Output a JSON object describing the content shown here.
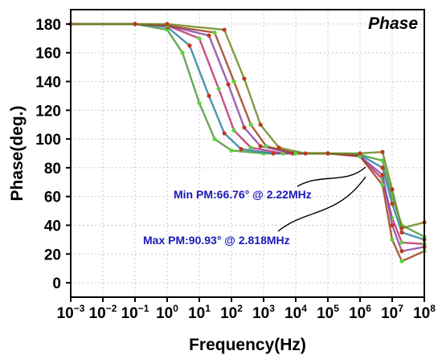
{
  "chart_data": {
    "type": "line",
    "title": "Phase",
    "xlabel": "Frequency(Hz)",
    "ylabel": "Phase(deg.)",
    "x_scale": "log",
    "xlim": [
      0.001,
      100000000
    ],
    "ylim": [
      -10,
      190
    ],
    "x_ticks": [
      {
        "base": "10",
        "exp": "−3"
      },
      {
        "base": "10",
        "exp": "−2"
      },
      {
        "base": "10",
        "exp": "−1"
      },
      {
        "base": "10",
        "exp": "0"
      },
      {
        "base": "10",
        "exp": "1"
      },
      {
        "base": "10",
        "exp": "2"
      },
      {
        "base": "10",
        "exp": "3"
      },
      {
        "base": "10",
        "exp": "4"
      },
      {
        "base": "10",
        "exp": "5"
      },
      {
        "base": "10",
        "exp": "6"
      },
      {
        "base": "10",
        "exp": "7"
      },
      {
        "base": "10",
        "exp": "8"
      }
    ],
    "y_ticks": [
      "0",
      "20",
      "40",
      "60",
      "80",
      "100",
      "120",
      "140",
      "160",
      "180"
    ],
    "grid": true,
    "series_description_note_free": true,
    "series": [
      {
        "color": "#4a9a3a",
        "x": [
          0.001,
          0.1,
          1,
          3,
          10,
          30,
          100,
          1000,
          100000,
          1000000,
          5000000,
          10000000,
          20000000,
          100000000
        ],
        "values": [
          180,
          180,
          176,
          160,
          125,
          100,
          92,
          90,
          90,
          89,
          85,
          60,
          40,
          32
        ]
      },
      {
        "color": "#2e7fa8",
        "x": [
          0.001,
          0.1,
          1,
          5,
          20,
          60,
          200,
          2000,
          100000,
          1000000,
          5000000,
          10000000,
          20000000,
          100000000
        ],
        "values": [
          180,
          180,
          178,
          165,
          130,
          104,
          93,
          90,
          90,
          89,
          80,
          55,
          35,
          30
        ]
      },
      {
        "color": "#c03070",
        "x": [
          0.001,
          0.1,
          1,
          10,
          40,
          120,
          400,
          4000,
          100000,
          1000000,
          5000000,
          10000000,
          20000000,
          100000000
        ],
        "values": [
          180,
          180,
          179,
          170,
          135,
          106,
          94,
          90,
          90,
          88,
          72,
          45,
          28,
          27
        ]
      },
      {
        "color": "#8a4aa8",
        "x": [
          0.001,
          0.1,
          1,
          20,
          80,
          250,
          800,
          8000,
          100000,
          1000000,
          5000000,
          10000000,
          20000000,
          100000000
        ],
        "values": [
          180,
          180,
          179,
          172,
          138,
          108,
          95,
          90,
          90,
          88,
          75,
          40,
          22,
          25
        ]
      },
      {
        "color": "#a04020",
        "x": [
          0.001,
          0.1,
          1,
          30,
          120,
          400,
          1200,
          10000,
          100000,
          1000000,
          5000000,
          10000000,
          20000000,
          100000000
        ],
        "values": [
          180,
          180,
          179,
          174,
          140,
          110,
          95,
          90,
          90,
          88,
          68,
          30,
          15,
          22
        ]
      },
      {
        "color": "#6b8a20",
        "x": [
          0.001,
          0.1,
          1,
          60,
          250,
          800,
          3000,
          20000,
          100000,
          1000000,
          5000000,
          10000000,
          20000000,
          100000000
        ],
        "values": [
          180,
          180,
          180,
          176,
          142,
          110,
          94,
          90,
          90,
          90,
          91,
          65,
          38,
          42
        ]
      }
    ],
    "annotations": [
      "Min PM:66.76° @ 2.22MHz",
      "Max PM:90.93° @ 2.818MHz"
    ]
  }
}
